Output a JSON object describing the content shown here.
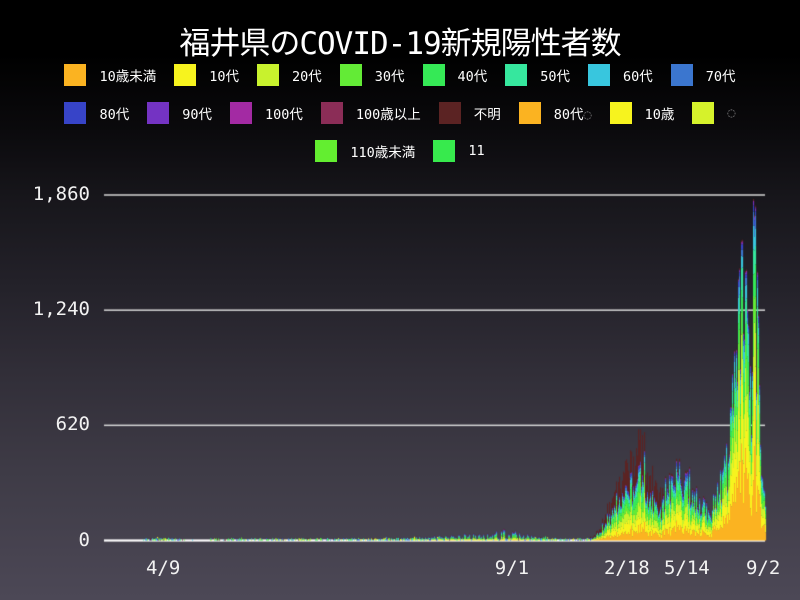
{
  "title": "福井県のCOVID-19新規陽性者数",
  "legend": {
    "rows": [
      [
        {
          "label": "10歳未満",
          "color": "#fbb321"
        },
        {
          "label": "10代",
          "color": "#f7f31e"
        },
        {
          "label": "20代",
          "color": "#c8f22d"
        },
        {
          "label": "30代",
          "color": "#63eb36"
        },
        {
          "label": "40代",
          "color": "#35e956"
        },
        {
          "label": "50代",
          "color": "#36e79e"
        },
        {
          "label": "60代",
          "color": "#38c6de"
        },
        {
          "label": "70代",
          "color": "#3b76cf"
        }
      ],
      [
        {
          "label": "80代",
          "color": "#3744c8"
        },
        {
          "label": "90代",
          "color": "#7433c3"
        },
        {
          "label": "100代",
          "color": "#a32aa3"
        },
        {
          "label": "100歳以上",
          "color": "#8b2d57"
        },
        {
          "label": "不明",
          "color": "#5b2323"
        },
        {
          "label": "80代",
          "faint": "◌",
          "color": "#fbb321"
        },
        {
          "label": "10歳",
          "color": "#f7f31e"
        },
        {
          "label": "",
          "faint": "◌",
          "color": "#d6f22b"
        }
      ],
      [
        {
          "label": "110歳未満",
          "color": "#63ee30"
        },
        {
          "label": "11",
          "color": "#37ea4d"
        }
      ]
    ]
  },
  "chart_data": {
    "type": "area",
    "stacked": true,
    "title": "福井県のCOVID-19新規陽性者数",
    "xlabel": "",
    "ylabel": "",
    "ylim": [
      0,
      1860
    ],
    "grid": true,
    "legend_position": "top",
    "grid_color": "#d6d6d6",
    "axis_color": "#ffffff",
    "text_color": "#f2f2f2",
    "y_ticks": [
      {
        "label": "0",
        "value": 0
      },
      {
        "label": "620",
        "value": 620
      },
      {
        "label": "1,240",
        "value": 1240
      },
      {
        "label": "1,860",
        "value": 1860
      }
    ],
    "x_ticks": [
      {
        "label": "4/9",
        "f": 0.037
      },
      {
        "label": "9/1",
        "f": 0.595
      },
      {
        "label": "2/18",
        "f": 0.779
      },
      {
        "label": "5/14",
        "f": 0.875
      },
      {
        "label": "9/2",
        "f": 0.997
      }
    ],
    "series": [
      {
        "name": "10歳未満",
        "color": "#fbb321"
      },
      {
        "name": "10代",
        "color": "#f7f31e"
      },
      {
        "name": "20代",
        "color": "#c8f22d"
      },
      {
        "name": "30代",
        "color": "#63eb36"
      },
      {
        "name": "40代",
        "color": "#35e956"
      },
      {
        "name": "50代",
        "color": "#36e79e"
      },
      {
        "name": "60代",
        "color": "#38c6de"
      },
      {
        "name": "70代",
        "color": "#3b76cf"
      },
      {
        "name": "80代",
        "color": "#3744c8"
      },
      {
        "name": "90代",
        "color": "#7433c3"
      },
      {
        "name": "100代",
        "color": "#a32aa3"
      },
      {
        "name": "100歳以上",
        "color": "#8b2d57"
      },
      {
        "name": "不明",
        "color": "#5b2323"
      }
    ],
    "era_breaks": [
      0.722,
      0.836,
      0.915
    ],
    "era_profiles": [
      [
        0.06,
        0.09,
        0.16,
        0.14,
        0.13,
        0.11,
        0.09,
        0.08,
        0.06,
        0.04,
        0.01,
        0.005,
        0.035
      ],
      [
        0.13,
        0.14,
        0.12,
        0.11,
        0.1,
        0.07,
        0.045,
        0.03,
        0.02,
        0.01,
        0.004,
        0.003,
        0.328
      ],
      [
        0.19,
        0.17,
        0.13,
        0.13,
        0.12,
        0.09,
        0.055,
        0.04,
        0.03,
        0.018,
        0.008,
        0.004,
        0.025
      ],
      [
        0.26,
        0.2,
        0.14,
        0.12,
        0.1,
        0.07,
        0.05,
        0.03,
        0.015,
        0.007,
        0.003,
        0.002,
        0.003
      ]
    ],
    "speck_layers": [
      3,
      3,
      4,
      4,
      6,
      6,
      7,
      7,
      8,
      1,
      2,
      2,
      12,
      5
    ],
    "samples": [
      [
        0.003,
        1
      ],
      [
        0.01,
        5
      ],
      [
        0.018,
        9
      ],
      [
        0.026,
        8
      ],
      [
        0.034,
        10
      ],
      [
        0.042,
        7
      ],
      [
        0.051,
        3
      ],
      [
        0.064,
        1
      ],
      [
        0.088,
        0.5
      ],
      [
        0.112,
        1
      ],
      [
        0.141,
        5
      ],
      [
        0.157,
        7
      ],
      [
        0.173,
        4
      ],
      [
        0.189,
        3
      ],
      [
        0.205,
        5
      ],
      [
        0.221,
        3
      ],
      [
        0.24,
        2
      ],
      [
        0.264,
        4
      ],
      [
        0.288,
        5
      ],
      [
        0.312,
        5
      ],
      [
        0.336,
        6
      ],
      [
        0.36,
        5
      ],
      [
        0.384,
        7
      ],
      [
        0.408,
        8
      ],
      [
        0.432,
        11
      ],
      [
        0.451,
        15
      ],
      [
        0.47,
        18
      ],
      [
        0.49,
        16
      ],
      [
        0.509,
        21
      ],
      [
        0.525,
        26
      ],
      [
        0.541,
        24
      ],
      [
        0.557,
        30
      ],
      [
        0.573,
        36
      ],
      [
        0.586,
        40
      ],
      [
        0.595,
        34
      ],
      [
        0.608,
        28
      ],
      [
        0.624,
        20
      ],
      [
        0.64,
        13
      ],
      [
        0.656,
        8
      ],
      [
        0.672,
        4
      ],
      [
        0.688,
        2
      ],
      [
        0.704,
        2
      ],
      [
        0.718,
        5
      ],
      [
        0.728,
        30
      ],
      [
        0.738,
        85
      ],
      [
        0.746,
        140
      ],
      [
        0.754,
        195
      ],
      [
        0.762,
        250
      ],
      [
        0.77,
        300
      ],
      [
        0.778,
        350
      ],
      [
        0.784,
        400
      ],
      [
        0.79,
        450
      ],
      [
        0.797,
        480
      ],
      [
        0.802,
        540
      ],
      [
        0.806,
        460
      ],
      [
        0.813,
        380
      ],
      [
        0.819,
        320
      ],
      [
        0.826,
        270
      ],
      [
        0.832,
        220
      ],
      [
        0.838,
        250
      ],
      [
        0.846,
        300
      ],
      [
        0.854,
        330
      ],
      [
        0.862,
        355
      ],
      [
        0.87,
        340
      ],
      [
        0.877,
        310
      ],
      [
        0.883,
        270
      ],
      [
        0.89,
        230
      ],
      [
        0.896,
        195
      ],
      [
        0.904,
        170
      ],
      [
        0.912,
        160
      ],
      [
        0.918,
        185
      ],
      [
        0.925,
        230
      ],
      [
        0.931,
        310
      ],
      [
        0.938,
        420
      ],
      [
        0.944,
        560
      ],
      [
        0.949,
        720
      ],
      [
        0.954,
        900
      ],
      [
        0.958,
        1100
      ],
      [
        0.963,
        1300
      ],
      [
        0.968,
        1100
      ],
      [
        0.973,
        850
      ],
      [
        0.978,
        1000
      ],
      [
        0.982,
        1300
      ],
      [
        0.986,
        1200
      ],
      [
        0.989,
        950
      ],
      [
        0.992,
        750
      ],
      [
        0.995,
        550
      ],
      [
        0.998,
        380
      ],
      [
        1.0,
        300
      ]
    ],
    "spikes": [
      [
        0.957,
        1480
      ],
      [
        0.962,
        1720
      ],
      [
        0.9824,
        1860
      ]
    ]
  }
}
